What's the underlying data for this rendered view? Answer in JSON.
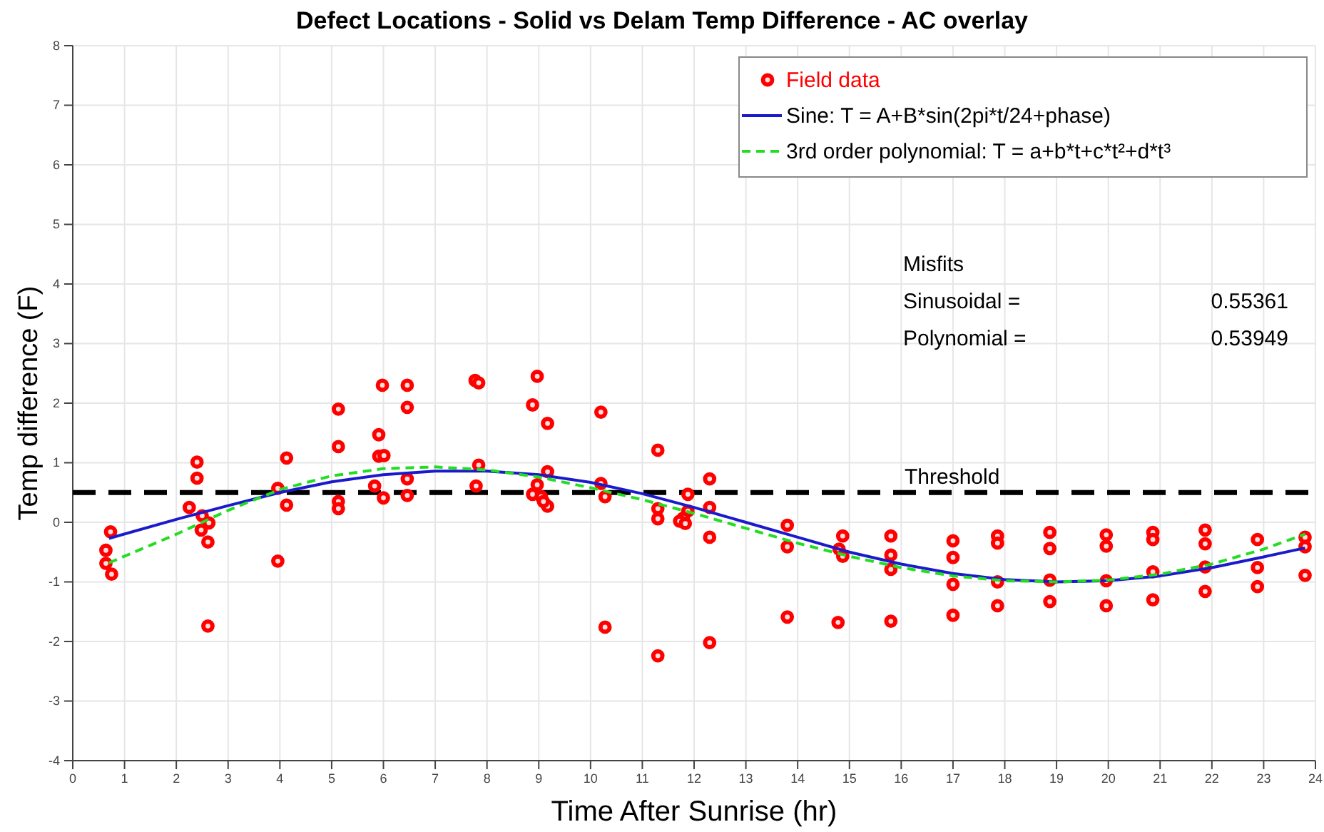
{
  "chart_data": {
    "type": "scatter",
    "title": "Defect Locations - Solid vs Delam Temp Difference - AC overlay",
    "xlabel": "Time After Sunrise (hr)",
    "ylabel": "Temp difference (F)",
    "xlim": [
      0,
      24
    ],
    "ylim": [
      -4,
      8
    ],
    "xticks": [
      0,
      1,
      2,
      3,
      4,
      5,
      6,
      7,
      8,
      9,
      10,
      11,
      12,
      13,
      14,
      15,
      16,
      17,
      18,
      19,
      20,
      21,
      22,
      23,
      24
    ],
    "yticks": [
      -4,
      -3,
      -2,
      -1,
      0,
      1,
      2,
      3,
      4,
      5,
      6,
      7,
      8
    ],
    "grid": true,
    "legend": "top right",
    "ref_lines": [
      {
        "axis": "y",
        "value": 0.5,
        "label": "Threshold",
        "color": "#000000",
        "line_style": "dashed"
      }
    ],
    "annotations": [
      "Misfits",
      "Sinusoidal =",
      "0.55361",
      "Polynomial =",
      "0.53949"
    ],
    "series": [
      {
        "name": "Field data",
        "type": "scatter",
        "color": "#ff0000",
        "marker": "circle",
        "x": [
          0.73,
          0.64,
          0.64,
          0.75,
          2.4,
          2.4,
          2.25,
          2.5,
          2.48,
          2.63,
          2.61,
          2.61,
          3.96,
          3.96,
          4.13,
          4.13,
          5.13,
          5.13,
          5.13,
          5.13,
          5.91,
          5.91,
          6.01,
          5.98,
          5.83,
          6.0,
          6.46,
          6.46,
          6.46,
          6.46,
          7.77,
          7.84,
          7.84,
          7.79,
          8.97,
          8.88,
          9.17,
          8.97,
          8.88,
          9.05,
          9.17,
          9.17,
          9.09,
          10.2,
          10.2,
          10.28,
          10.28,
          11.3,
          11.3,
          11.3,
          11.3,
          11.88,
          11.88,
          11.79,
          11.72,
          11.83,
          12.3,
          12.3,
          12.3,
          12.3,
          13.8,
          13.8,
          13.8,
          14.87,
          14.8,
          14.87,
          14.78,
          15.8,
          15.8,
          15.8,
          15.8,
          17.0,
          17.0,
          17.0,
          17.0,
          17.86,
          17.86,
          17.86,
          17.86,
          18.87,
          18.87,
          18.87,
          18.87,
          19.96,
          19.96,
          19.96,
          19.96,
          20.86,
          20.86,
          20.86,
          20.86,
          21.87,
          21.87,
          21.87,
          21.87,
          22.88,
          22.88,
          22.88,
          23.8,
          23.8,
          23.8
        ],
        "values": [
          -0.16,
          -0.47,
          -0.69,
          -0.87,
          1.01,
          0.74,
          0.25,
          0.11,
          -0.13,
          -0.01,
          -0.33,
          -1.74,
          -0.65,
          0.57,
          1.08,
          0.29,
          1.9,
          1.27,
          0.35,
          0.23,
          1.47,
          1.11,
          1.12,
          2.3,
          0.61,
          0.41,
          2.3,
          1.93,
          0.73,
          0.45,
          2.38,
          2.34,
          0.96,
          0.61,
          2.45,
          1.97,
          1.66,
          0.63,
          0.47,
          0.43,
          0.85,
          0.27,
          0.35,
          1.85,
          0.65,
          0.43,
          -1.76,
          1.21,
          0.23,
          0.06,
          -2.24,
          0.47,
          0.19,
          0.07,
          0.02,
          -0.02,
          0.73,
          0.25,
          -0.25,
          -2.02,
          -0.05,
          -0.41,
          -1.59,
          -0.23,
          -0.45,
          -0.57,
          -1.68,
          -0.23,
          -0.55,
          -0.79,
          -1.66,
          -0.31,
          -0.59,
          -1.04,
          -1.56,
          -0.23,
          -0.35,
          -1.0,
          -1.4,
          -0.17,
          -0.44,
          -0.97,
          -1.33,
          -0.21,
          -0.4,
          -0.98,
          -1.4,
          -0.17,
          -0.29,
          -0.83,
          -1.3,
          -0.13,
          -0.36,
          -0.75,
          -1.16,
          -0.29,
          -0.76,
          -1.08,
          -0.25,
          -0.41,
          -0.89
        ]
      },
      {
        "name": "Sine: T = A+B*sin(2pi*t/24+phase)",
        "type": "line",
        "color": "#1a1acc",
        "line_style": "solid",
        "marker": "none",
        "x": [
          0.7,
          2,
          3,
          4,
          5,
          6,
          7,
          8,
          9,
          10,
          11,
          12,
          13,
          14,
          15,
          16,
          17,
          18,
          19,
          20,
          21,
          22,
          23,
          23.8
        ],
        "values": [
          -0.27,
          0.05,
          0.28,
          0.5,
          0.68,
          0.8,
          0.86,
          0.86,
          0.8,
          0.67,
          0.48,
          0.25,
          0.0,
          -0.25,
          -0.5,
          -0.7,
          -0.86,
          -0.96,
          -1.0,
          -0.98,
          -0.9,
          -0.76,
          -0.58,
          -0.43
        ]
      },
      {
        "name": "3rd order polynomial: T = a+b*t+c*t²+d*t³",
        "type": "line",
        "color": "#22dd22",
        "line_style": "dashed",
        "marker": "none",
        "x": [
          0.7,
          2,
          3,
          4,
          5,
          6,
          7,
          8,
          9,
          10,
          11,
          12,
          13,
          14,
          15,
          16,
          17,
          18,
          19,
          20,
          21,
          22,
          23,
          23.8
        ],
        "values": [
          -0.68,
          -0.2,
          0.2,
          0.55,
          0.78,
          0.9,
          0.93,
          0.88,
          0.76,
          0.58,
          0.38,
          0.15,
          -0.1,
          -0.35,
          -0.57,
          -0.76,
          -0.9,
          -0.98,
          -1.0,
          -0.97,
          -0.87,
          -0.7,
          -0.45,
          -0.2
        ]
      }
    ]
  }
}
